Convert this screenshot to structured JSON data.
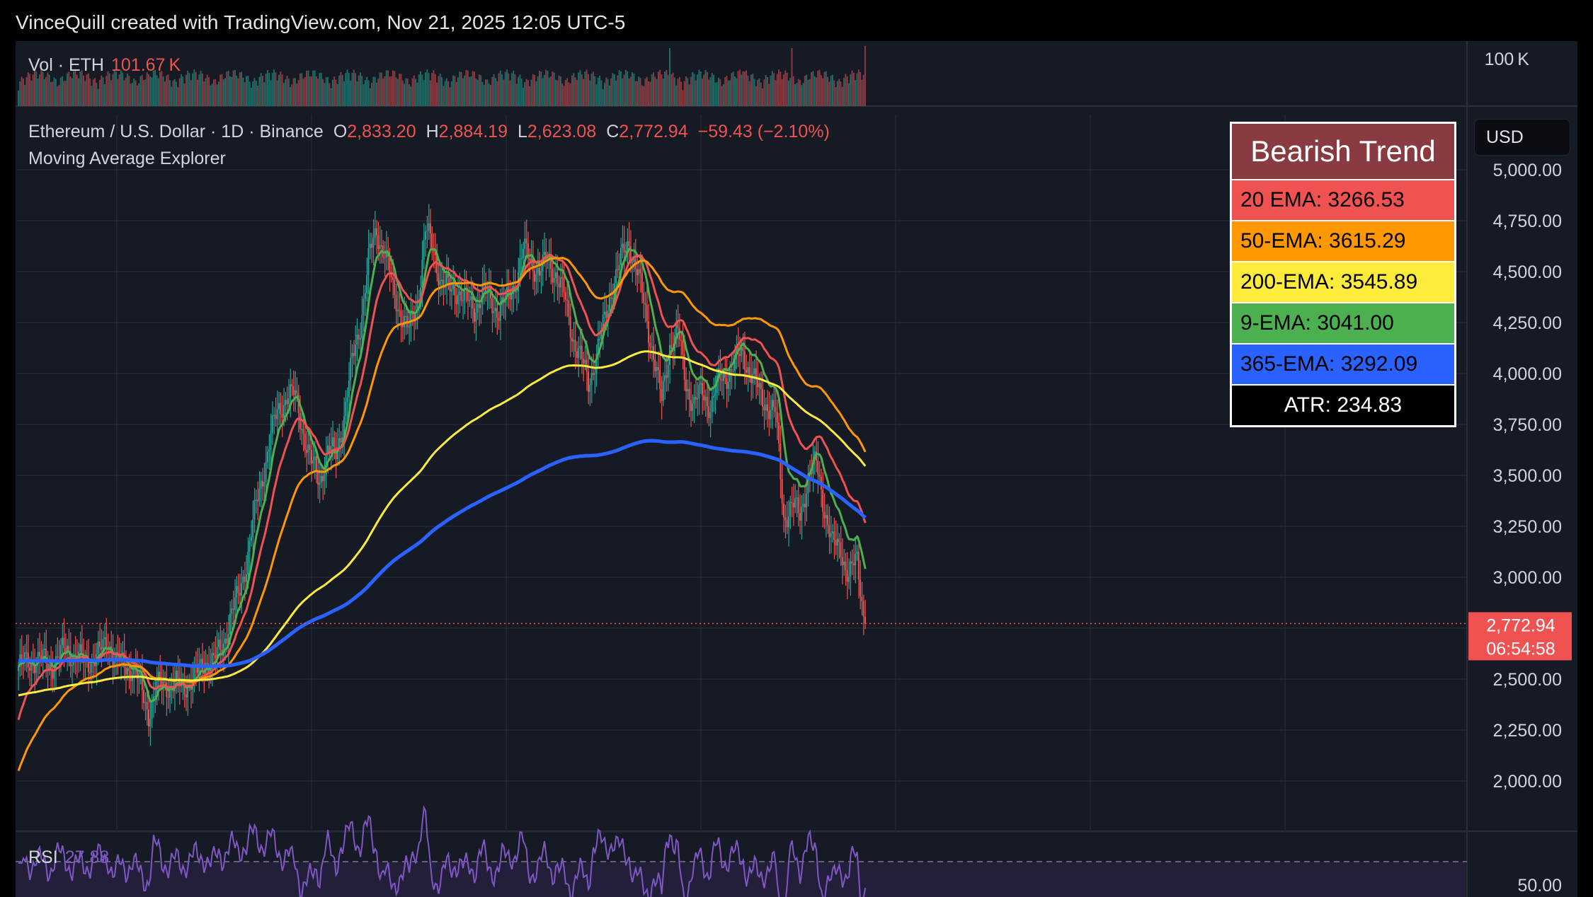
{
  "attribution": "VinceQuill created with TradingView.com, Nov 21, 2025 12:05 UTC-5",
  "volume_pane": {
    "label": "Vol · ETH",
    "value": "101.67 K",
    "axis_label": "100 K"
  },
  "header": {
    "symbol": "Ethereum / U.S. Dollar · 1D · Binance",
    "open_key": "O",
    "open": "2,833.20",
    "high_key": "H",
    "high": "2,884.19",
    "low_key": "L",
    "low": "2,623.08",
    "close_key": "C",
    "close": "2,772.94",
    "change": "−59.43 (−2.10%)",
    "indicator": "Moving Average Explorer"
  },
  "currency_button": "USD",
  "last_price_tag": {
    "price": "2,772.94",
    "countdown": "06:54:58"
  },
  "rsi_pane": {
    "label": "RSI",
    "value": "27.88",
    "axis_label": "50.00"
  },
  "legend": {
    "title": "Bearish Trend",
    "rows": [
      {
        "label": "20 EMA: 3266.53",
        "bg": "#f05252",
        "fg": "#000000"
      },
      {
        "label": "50-EMA: 3615.29",
        "bg": "#ff9800",
        "fg": "#000000"
      },
      {
        "label": "200-EMA: 3545.89",
        "bg": "#ffeb3b",
        "fg": "#000000"
      },
      {
        "label": "9-EMA: 3041.00",
        "bg": "#4caf50",
        "fg": "#000000"
      },
      {
        "label": "365-EMA: 3292.09",
        "bg": "#2962ff",
        "fg": "#000000"
      },
      {
        "label": "ATR: 234.83",
        "bg": "#000000",
        "fg": "#ffffff"
      }
    ]
  },
  "colors": {
    "up": "#26a69a",
    "down": "#ef5350",
    "background": "#161a25",
    "grid": "#232733"
  },
  "chart_data": {
    "type": "candlestick",
    "timeframe": "1D",
    "y_axis": {
      "ticks": [
        "5,000.00",
        "4,750.00",
        "4,500.00",
        "4,250.00",
        "4,000.00",
        "3,750.00",
        "3,500.00",
        "3,250.00",
        "3,000.00",
        "2,500.00",
        "2,250.00",
        "2,000.00"
      ],
      "ylim": [
        1750,
        5150
      ]
    },
    "grid": true,
    "last_close": 2772.94,
    "close_path_anchors": [
      [
        0,
        2560
      ],
      [
        10,
        2600
      ],
      [
        20,
        2570
      ],
      [
        30,
        2650
      ],
      [
        40,
        2580
      ],
      [
        50,
        2620
      ],
      [
        55,
        2700
      ],
      [
        60,
        2580
      ],
      [
        70,
        2560
      ],
      [
        75,
        2460
      ],
      [
        80,
        2340
      ],
      [
        85,
        2450
      ],
      [
        90,
        2480
      ],
      [
        100,
        2460
      ],
      [
        110,
        2520
      ],
      [
        115,
        2600
      ],
      [
        120,
        2580
      ],
      [
        125,
        2660
      ],
      [
        130,
        2800
      ],
      [
        135,
        2900
      ],
      [
        140,
        3080
      ],
      [
        145,
        3300
      ],
      [
        150,
        3500
      ],
      [
        155,
        3700
      ],
      [
        160,
        3820
      ],
      [
        165,
        3900
      ],
      [
        170,
        3880
      ],
      [
        175,
        3720
      ],
      [
        180,
        3550
      ],
      [
        185,
        3480
      ],
      [
        190,
        3620
      ],
      [
        195,
        3600
      ],
      [
        200,
        3800
      ],
      [
        205,
        4050
      ],
      [
        210,
        4250
      ],
      [
        215,
        4550
      ],
      [
        220,
        4700
      ],
      [
        225,
        4600
      ],
      [
        230,
        4400
      ],
      [
        235,
        4300
      ],
      [
        240,
        4200
      ],
      [
        245,
        4350
      ],
      [
        250,
        4700
      ],
      [
        255,
        4600
      ],
      [
        260,
        4450
      ],
      [
        265,
        4400
      ],
      [
        270,
        4420
      ],
      [
        275,
        4350
      ],
      [
        280,
        4320
      ],
      [
        285,
        4400
      ],
      [
        290,
        4350
      ],
      [
        295,
        4320
      ],
      [
        300,
        4350
      ],
      [
        305,
        4450
      ],
      [
        310,
        4600
      ],
      [
        315,
        4550
      ],
      [
        320,
        4500
      ],
      [
        325,
        4550
      ],
      [
        330,
        4500
      ],
      [
        335,
        4380
      ],
      [
        340,
        4200
      ],
      [
        345,
        4080
      ],
      [
        350,
        3950
      ],
      [
        355,
        4100
      ],
      [
        360,
        4250
      ],
      [
        365,
        4450
      ],
      [
        370,
        4550
      ],
      [
        375,
        4650
      ],
      [
        380,
        4500
      ],
      [
        385,
        4300
      ],
      [
        390,
        4100
      ],
      [
        395,
        3850
      ],
      [
        400,
        4150
      ],
      [
        405,
        4200
      ],
      [
        410,
        3950
      ],
      [
        415,
        3850
      ],
      [
        420,
        3900
      ],
      [
        425,
        3850
      ],
      [
        430,
        3950
      ],
      [
        435,
        4000
      ],
      [
        440,
        4050
      ],
      [
        445,
        4100
      ],
      [
        450,
        4000
      ],
      [
        455,
        3900
      ],
      [
        460,
        3850
      ],
      [
        465,
        3800
      ],
      [
        470,
        3300
      ],
      [
        475,
        3350
      ],
      [
        480,
        3300
      ],
      [
        485,
        3500
      ],
      [
        490,
        3550
      ],
      [
        495,
        3350
      ],
      [
        500,
        3150
      ],
      [
        505,
        3150
      ],
      [
        510,
        3000
      ],
      [
        515,
        3080
      ],
      [
        520,
        2772.94
      ]
    ],
    "n_candles": 521,
    "ema_series": [
      {
        "name": "9-EMA",
        "color": "#4caf50",
        "last": 3041.0
      },
      {
        "name": "20 EMA",
        "color": "#f05252",
        "last": 3266.53
      },
      {
        "name": "50-EMA",
        "color": "#ff9800",
        "last": 3615.29
      },
      {
        "name": "200-EMA",
        "color": "#ffeb3b",
        "last": 3545.89
      },
      {
        "name": "365-EMA",
        "color": "#2962ff",
        "last": 3292.09
      }
    ],
    "volume_spikes": [
      [
        400,
        100
      ],
      [
        475,
        100
      ],
      [
        520,
        104
      ],
      [
        80,
        55
      ],
      [
        305,
        55
      ],
      [
        445,
        60
      ]
    ],
    "rsi_last": 27.88
  }
}
